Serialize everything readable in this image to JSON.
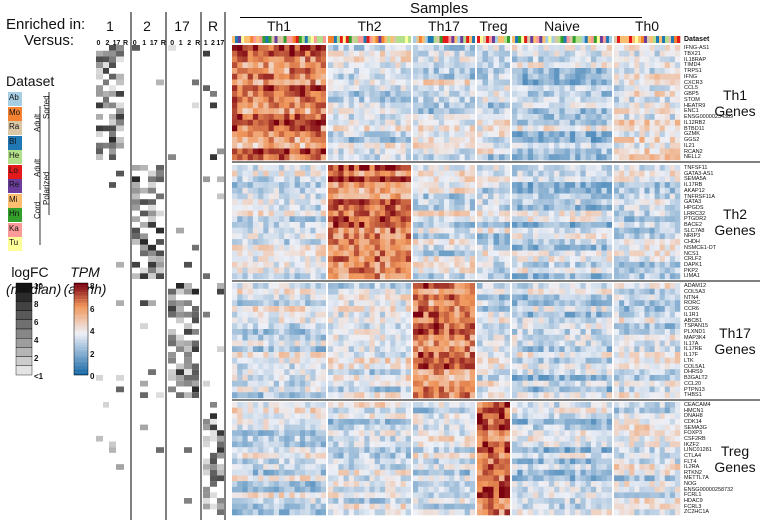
{
  "header": {
    "samples_label": "Samples",
    "enriched_in_label": "Enriched in:",
    "versus_label": "Versus:",
    "dataset_label": "Dataset"
  },
  "enrichment_columns": [
    {
      "label": "1",
      "sub": [
        "0",
        "2",
        "17",
        "R"
      ]
    },
    {
      "label": "2",
      "sub": [
        "0",
        "1",
        "17",
        "R"
      ]
    },
    {
      "label": "17",
      "sub": [
        "0",
        "1",
        "2",
        "R"
      ]
    },
    {
      "label": "R",
      "sub": [
        "1",
        "2",
        "17"
      ]
    }
  ],
  "sample_groups": [
    "Th1",
    "Th2",
    "Th17",
    "Treg",
    "Naive",
    "Th0"
  ],
  "dataset_legend": {
    "title": "Dataset",
    "items": [
      {
        "code": "Ab",
        "color": "#a6cee3"
      },
      {
        "code": "Mo",
        "color": "#f58231"
      },
      {
        "code": "Ra",
        "color": "#d9c7a6"
      },
      {
        "code": "Bl",
        "color": "#1f78b4"
      },
      {
        "code": "He",
        "color": "#b2df8a"
      },
      {
        "code": "Lo",
        "color": "#e31a1c"
      },
      {
        "code": "Re",
        "color": "#6a3d9a"
      },
      {
        "code": "Mi",
        "color": "#fdbf6f"
      },
      {
        "code": "Hn",
        "color": "#33a02c"
      },
      {
        "code": "Ka",
        "color": "#fb9a99"
      },
      {
        "code": "Tu",
        "color": "#ffff99"
      }
    ],
    "brackets": [
      "Sorted",
      "Adult",
      "Polarized",
      "Adult",
      "Cord"
    ]
  },
  "logfc_legend": {
    "title_line1": "logFC",
    "title_line2": "(median)",
    "ticks": [
      "10",
      "8",
      "6",
      "4",
      "2",
      "<1"
    ]
  },
  "tpm_legend": {
    "title_line1": "TPM",
    "title_line2": "(asinh)",
    "ticks": [
      "8",
      "6",
      "4",
      "2",
      "0"
    ]
  },
  "gene_blocks": [
    {
      "label_line1": "Th1",
      "label_line2": "Genes",
      "genes": [
        "IFNG-AS1",
        "TBX21",
        "IL18RAP",
        "TIMD4",
        "TRPS1",
        "IFNG",
        "CXCR3",
        "CCL5",
        "GBP5",
        "STOM",
        "HEATR9",
        "ENC1",
        "ENSG00000234389",
        "IL12RB2",
        "BTBD11",
        "GZMK",
        "GGS2",
        "IL21",
        "RCAN2",
        "NELL2"
      ]
    },
    {
      "label_line1": "Th2",
      "label_line2": "Genes",
      "genes": [
        "TNFSF11",
        "GATA3-AS1",
        "SEMA5A",
        "IL17RB",
        "AKAP12",
        "TNFRSF11A",
        "GATA3",
        "HPGDS",
        "LRRC32",
        "PTGDR2",
        "BACE2",
        "SLC7A8",
        "NRIP3",
        "CHDH",
        "NSMCE1-DT",
        "NCS1",
        "CRLF2",
        "DAPK1",
        "PKP2",
        "LIMA1"
      ]
    },
    {
      "label_line1": "Th17",
      "label_line2": "Genes",
      "genes": [
        "ADAM12",
        "COL5A3",
        "NTN4",
        "RORC",
        "CCR6",
        "IL1R1",
        "ABCB1",
        "TSPAN15",
        "PLXND1",
        "MAP3K4",
        "IL17A",
        "IL17RE",
        "IL17F",
        "LTK",
        "COL5A1",
        "DHRS9",
        "B3GALT2",
        "CCL20",
        "PTPN13",
        "THBS1"
      ]
    },
    {
      "label_line1": "Treg",
      "label_line2": "Genes",
      "genes": [
        "CEACAM4",
        "HMCN1",
        "DNAH8",
        "CDK14",
        "SEMA3G",
        "FOXP3",
        "CSF2RB",
        "IKZF2",
        "LINC01281",
        "CTLA4",
        "FLT4",
        "IL2RA",
        "RTKN2",
        "METTL7A",
        "NOG",
        "ENSG00000258732",
        "FCRL1",
        "HDAC9",
        "FCRL3",
        "ZC2HC1A"
      ]
    }
  ],
  "colors": {
    "tpm_low": "#1a6aa8",
    "tpm_mid": "#eef0f7",
    "tpm_high": "#7a0010"
  }
}
